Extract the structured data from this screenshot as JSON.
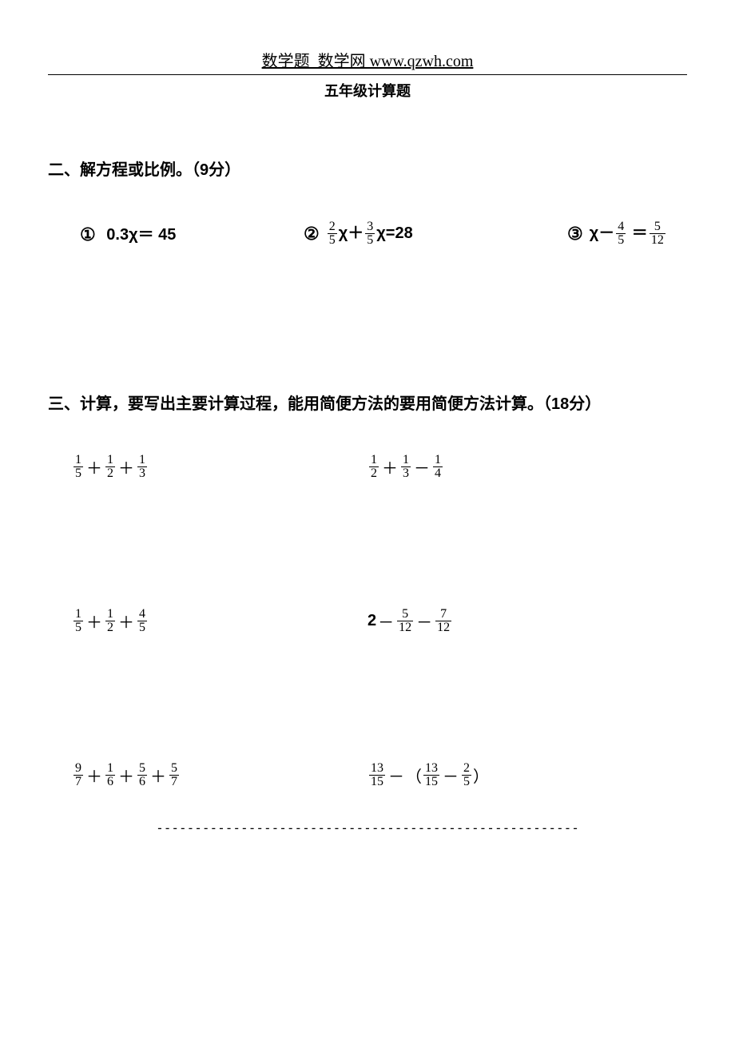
{
  "header": {
    "site": "数学题_数学网 www.qzwh.com",
    "title": "五年级计算题"
  },
  "section2": {
    "heading": "二、解方程或比例。（9分）",
    "eq1": {
      "marker": "①",
      "text": "0.3χ＝ 45"
    },
    "eq2": {
      "marker": "②",
      "f1": {
        "n": "2",
        "d": "5"
      },
      "mid1": "χ＋",
      "f2": {
        "n": "3",
        "d": "5"
      },
      "tail": "χ=28"
    },
    "eq3": {
      "marker": "③",
      "lead": "χ－",
      "f1": {
        "n": "4",
        "d": "5"
      },
      "mid": " ＝",
      "f2": {
        "n": "5",
        "d": "12"
      }
    }
  },
  "section3": {
    "heading": "三、计算，要写出主要计算过程，能用简便方法的要用简便方法计算。（18分）",
    "rows": [
      {
        "left": {
          "type": "sum3",
          "a": {
            "n": "1",
            "d": "5"
          },
          "op1": "＋",
          "b": {
            "n": "1",
            "d": "2"
          },
          "op2": "＋",
          "c": {
            "n": "1",
            "d": "3"
          }
        },
        "right": {
          "type": "sum3",
          "a": {
            "n": "1",
            "d": "2"
          },
          "op1": "＋",
          "b": {
            "n": "1",
            "d": "3"
          },
          "op2": "－",
          "c": {
            "n": "1",
            "d": "4"
          }
        }
      },
      {
        "left": {
          "type": "sum3",
          "a": {
            "n": "1",
            "d": "5"
          },
          "op1": "＋",
          "b": {
            "n": "1",
            "d": "2"
          },
          "op2": "＋",
          "c": {
            "n": "4",
            "d": "5"
          }
        },
        "right": {
          "type": "int2",
          "lead": "2",
          "op1": "－",
          "a": {
            "n": "5",
            "d": "12"
          },
          "op2": "－",
          "b": {
            "n": "7",
            "d": "12"
          }
        }
      },
      {
        "left": {
          "type": "sum4",
          "a": {
            "n": "9",
            "d": "7"
          },
          "op1": "＋",
          "b": {
            "n": "1",
            "d": "6"
          },
          "op2": "＋",
          "c": {
            "n": "5",
            "d": "6"
          },
          "op3": "＋",
          "dd": {
            "n": "5",
            "d": "7"
          }
        },
        "right": {
          "type": "paren",
          "a": {
            "n": "13",
            "d": "15"
          },
          "op1": "－",
          "b": {
            "n": "13",
            "d": "15"
          },
          "op2": "－",
          "c": {
            "n": "2",
            "d": "5"
          }
        }
      }
    ]
  },
  "footer": {
    "dashes": "-------------------------------------------------------"
  }
}
